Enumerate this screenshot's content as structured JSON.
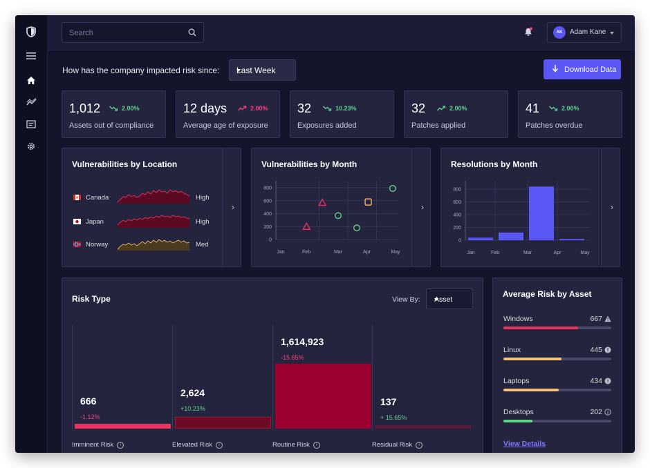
{
  "search": {
    "placeholder": "Search"
  },
  "user": {
    "initials": "AK",
    "name": "Adam Kane"
  },
  "header": {
    "question": "How has the company impacted risk since:",
    "range": "Last Week",
    "download_label": "Download Data"
  },
  "stats": [
    {
      "value": "1,012",
      "change": "2.00%",
      "trend": "down",
      "label": "Assets out of compliance"
    },
    {
      "value": "12 days",
      "change": "2.00%",
      "trend": "up",
      "label": "Average age of exposure"
    },
    {
      "value": "32",
      "change": "10.23%",
      "trend": "down",
      "label": "Exposures added"
    },
    {
      "value": "32",
      "change": "2.00%",
      "trend": "up",
      "label": "Patches applied"
    },
    {
      "value": "41",
      "change": "2.00%",
      "trend": "down",
      "label": "Patches overdue"
    }
  ],
  "locations": {
    "title": "Vulnerabilities by Location",
    "rows": [
      {
        "country": "Canada",
        "level": "High"
      },
      {
        "country": "Japan",
        "level": "High"
      },
      {
        "country": "Norway",
        "level": "Med"
      }
    ]
  },
  "vuln_month": {
    "title": "Vulnerabilities by Month",
    "yticks": [
      "800",
      "600",
      "400",
      "200",
      "0"
    ],
    "xticks": [
      "Jan",
      "Feb",
      "Mar",
      "Apr",
      "May"
    ]
  },
  "resolutions": {
    "title": "Resolutions by Month",
    "yticks": [
      "800",
      "600",
      "400",
      "200",
      "0"
    ],
    "xticks": [
      "Jan",
      "Feb",
      "Mar",
      "Apr",
      "May"
    ]
  },
  "chart_data": [
    {
      "type": "scatter",
      "title": "Vulnerabilities by Month",
      "x_categories": [
        "Jan",
        "Feb",
        "Mar",
        "Apr",
        "May"
      ],
      "ylim": [
        0,
        800
      ],
      "points": [
        {
          "x": "Feb",
          "x_offset": -0.1,
          "y": 200,
          "marker": "triangle",
          "color": "#e8325f"
        },
        {
          "x": "Feb",
          "x_offset": 0.45,
          "y": 570,
          "marker": "triangle",
          "color": "#e8325f"
        },
        {
          "x": "Mar",
          "x_offset": 0,
          "y": 370,
          "marker": "circle",
          "color": "#5fd38a"
        },
        {
          "x": "Apr",
          "x_offset": -0.35,
          "y": 180,
          "marker": "circle",
          "color": "#5fd38a"
        },
        {
          "x": "Apr",
          "x_offset": 0.05,
          "y": 580,
          "marker": "square",
          "color": "#f1b56b"
        },
        {
          "x": "May",
          "x_offset": -0.1,
          "y": 790,
          "marker": "circle",
          "color": "#5fd38a"
        }
      ]
    },
    {
      "type": "bar",
      "title": "Resolutions by Month",
      "categories": [
        "Jan",
        "Feb",
        "Mar",
        "Apr",
        "May"
      ],
      "values": [
        40,
        120,
        840,
        20,
        0
      ],
      "ylim": [
        0,
        800
      ],
      "color": "#5b57f5"
    },
    {
      "type": "bar",
      "title": "Risk Type",
      "categories": [
        "Imminent Risk",
        "Elevated Risk",
        "Routine Risk",
        "Residual Risk"
      ],
      "values": [
        666,
        2624,
        1614923,
        137
      ]
    }
  ],
  "risk": {
    "title": "Risk Type",
    "view_by_label": "View By:",
    "view_by_value": "Asset",
    "columns": [
      {
        "label": "Imminent Risk",
        "value": "666",
        "change": "-1.12%",
        "trend": "neg",
        "fill": 0.04,
        "color": "#e8325f"
      },
      {
        "label": "Elevated Risk",
        "value": "2,624",
        "change": "+10.23%",
        "trend": "pos",
        "fill": 0.1,
        "color": "#6d0a25"
      },
      {
        "label": "Routine Risk",
        "value": "1,614,923",
        "change": "-15.65%",
        "trend": "neg",
        "fill": 0.55,
        "color": "#9b0030"
      },
      {
        "label": "Residual Risk",
        "value": "137",
        "change": "+ 15.65%",
        "trend": "pos",
        "fill": 0.02,
        "color": "#5a1a3a"
      }
    ]
  },
  "assets": {
    "title": "Average Risk by Asset",
    "rows": [
      {
        "name": "Windows",
        "value": "667",
        "icon": "warning-icon",
        "fill": 0.69,
        "color": "#e8325f"
      },
      {
        "name": "Linux",
        "value": "445",
        "icon": "alert-circle-icon",
        "fill": 0.54,
        "color": "#f5c27a"
      },
      {
        "name": "Laptops",
        "value": "434",
        "icon": "alert-circle-icon",
        "fill": 0.51,
        "color": "#f5c27a"
      },
      {
        "name": "Desktops",
        "value": "202",
        "icon": "info-icon",
        "fill": 0.27,
        "color": "#5fd38a"
      }
    ],
    "link": "View Details"
  },
  "colors": {
    "accent": "#5b57f5",
    "positive": "#5fd38a",
    "negative": "#ff3d7a",
    "panel": "#24243f"
  }
}
